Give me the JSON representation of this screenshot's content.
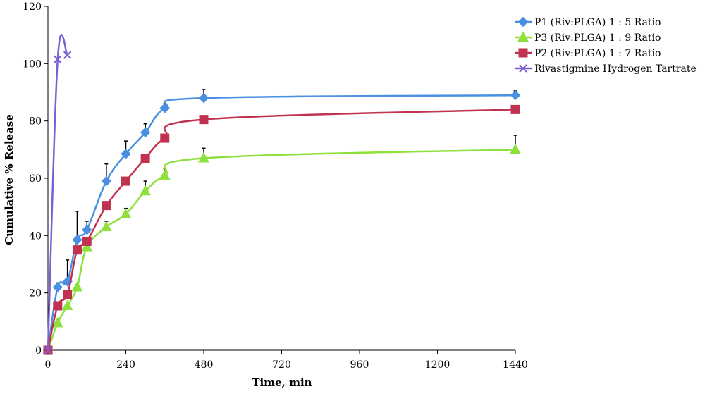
{
  "chart_data": {
    "type": "line",
    "title": "",
    "xlabel": "Time, min",
    "ylabel": "Cumulative % Release",
    "xlim": [
      0,
      1440
    ],
    "ylim": [
      0,
      120
    ],
    "xticks": [
      0,
      240,
      480,
      720,
      960,
      1200,
      1440
    ],
    "yticks": [
      0,
      20,
      40,
      60,
      80,
      100,
      120
    ],
    "grid": false,
    "legend_position": "top-right",
    "series": [
      {
        "name": "P1 (Riv:PLGA) 1 : 5 Ratio",
        "color": "#4a90e2",
        "marker": "diamond",
        "x": [
          0,
          30,
          60,
          90,
          120,
          180,
          240,
          300,
          360,
          480,
          1440
        ],
        "y": [
          0,
          22,
          24,
          38.5,
          42,
          59,
          68.5,
          76,
          84.5,
          88,
          89
        ],
        "error": [
          0,
          1.5,
          7.5,
          10,
          3,
          6,
          4.5,
          3,
          1.5,
          3,
          1.5
        ]
      },
      {
        "name": "P3 (Riv:PLGA) 1 : 9 Ratio",
        "color": "#8ee03c",
        "marker": "triangle",
        "x": [
          0,
          30,
          60,
          90,
          120,
          180,
          240,
          300,
          360,
          480,
          1440
        ],
        "y": [
          0,
          9.5,
          15.5,
          22,
          36,
          43,
          47.5,
          55.5,
          61,
          67,
          70
        ],
        "error": [
          0,
          0,
          0,
          0,
          0,
          2,
          2,
          3.5,
          2.5,
          3.5,
          5
        ]
      },
      {
        "name": "P2 (Riv:PLGA) 1 : 7 Ratio",
        "color": "#c0324f",
        "marker": "square",
        "x": [
          0,
          30,
          60,
          90,
          120,
          180,
          240,
          300,
          360,
          480,
          1440
        ],
        "y": [
          0,
          15.5,
          19.5,
          35,
          38,
          50.5,
          59,
          67,
          74,
          80.5,
          84
        ],
        "error": [
          0,
          0,
          0,
          0,
          0,
          0,
          0,
          0,
          0,
          0,
          0
        ]
      },
      {
        "name": "Rivastigmine Hydrogen Tartrate",
        "color": "#7b5fd6",
        "marker": "x",
        "x": [
          0,
          30,
          60
        ],
        "y": [
          0,
          101.5,
          103
        ],
        "error": [
          0,
          0,
          0
        ]
      }
    ]
  }
}
